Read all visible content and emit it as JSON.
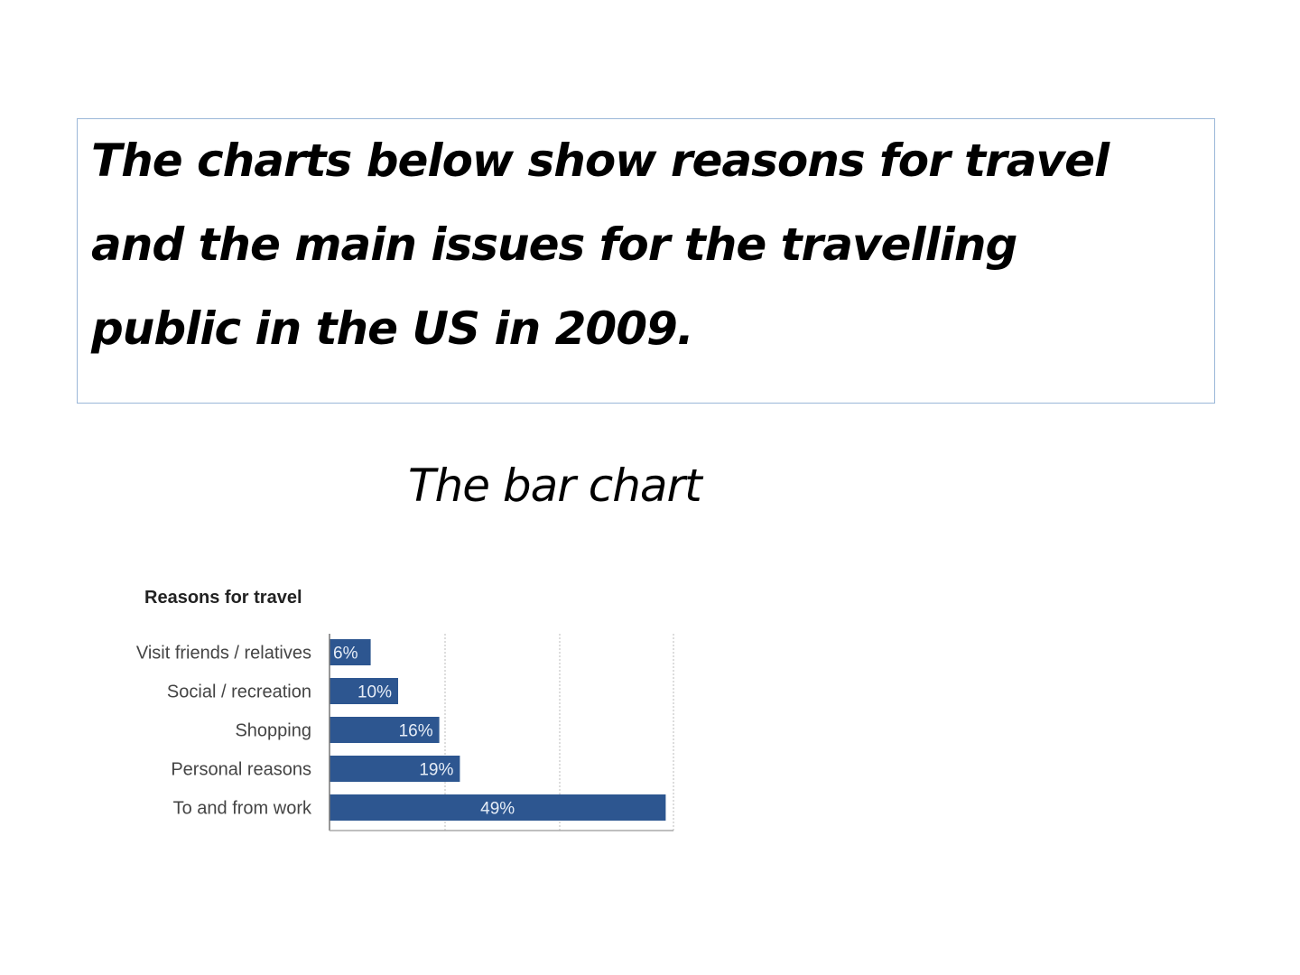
{
  "prompt": {
    "lines": [
      "The charts below show reasons for travel",
      "and the main issues for the travelling",
      "public in the US in 2009."
    ]
  },
  "section_title": "The bar chart",
  "chart_data": {
    "type": "bar",
    "orientation": "horizontal",
    "title": "Reasons for travel",
    "categories": [
      "Visit friends / relatives",
      "Social / recreation",
      "Shopping",
      "Personal reasons",
      "To and from work"
    ],
    "values": [
      6,
      10,
      16,
      19,
      49
    ],
    "data_labels": [
      "6%",
      "10%",
      "16%",
      "19%",
      "49%"
    ],
    "unit": "%",
    "xlim": [
      0,
      50
    ],
    "grid": true,
    "bar_color": "#2d5690"
  }
}
